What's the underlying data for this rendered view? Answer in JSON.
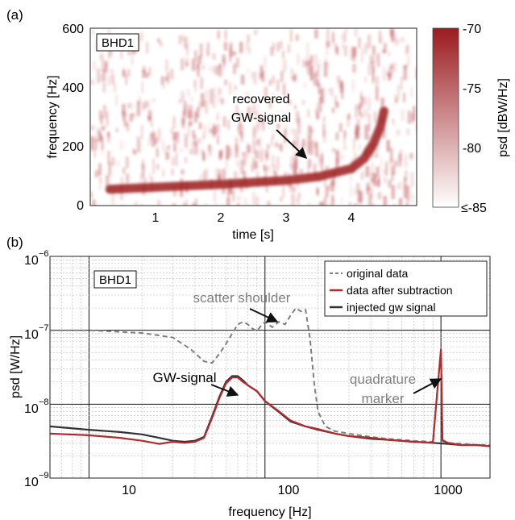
{
  "chart_data": [
    {
      "panel_label": "(a)",
      "type": "heatmap",
      "box_label": "BHD1",
      "xlabel": "time [s]",
      "ylabel": "frequency [Hz]",
      "xlim": [
        0,
        5
      ],
      "ylim": [
        0,
        600
      ],
      "xticks": [
        1,
        2,
        3,
        4
      ],
      "yticks": [
        0,
        200,
        400,
        600
      ],
      "colorbar": {
        "label": "psd [dBW/Hz]",
        "range": [
          -85,
          -70
        ],
        "ticks": [
          "-70",
          "-75",
          "-80",
          "≤-85"
        ],
        "color_low": "#ffffff",
        "color_high": "#9b1b1f"
      },
      "chirp_track": {
        "t": [
          0.3,
          1.0,
          2.0,
          3.0,
          3.5,
          4.0,
          4.2,
          4.35,
          4.45,
          4.5
        ],
        "f": [
          55,
          62,
          72,
          85,
          98,
          125,
          160,
          215,
          270,
          320
        ]
      },
      "annotation": {
        "lines": [
          "recovered",
          "GW-signal"
        ],
        "points_to": [
          3.45,
          95
        ]
      }
    },
    {
      "panel_label": "(b)",
      "type": "line",
      "box_label": "BHD1",
      "xlabel": "frequency [Hz]",
      "ylabel": "psd [W/Hz]",
      "xscale": "log",
      "yscale": "log",
      "xlim": [
        6,
        1900
      ],
      "ylim": [
        1e-09,
        1e-06
      ],
      "xticks": [
        10,
        100,
        1000
      ],
      "xticklabels": [
        "10",
        "100",
        "1000"
      ],
      "yticks": [
        1e-09,
        1e-08,
        1e-07,
        1e-06
      ],
      "yticklabels_mantissa": [
        "10",
        "10",
        "10",
        "10"
      ],
      "yticklabels_exponent": [
        "−9",
        "−8",
        "−7",
        "−6"
      ],
      "grid": true,
      "legend_position": "top-right",
      "series": [
        {
          "name": "original data",
          "color": "#808080",
          "style": "dashed",
          "x": [
            6,
            10,
            20,
            30,
            38,
            45,
            50,
            55,
            60,
            65,
            70,
            75,
            80,
            85,
            90,
            95,
            100,
            110,
            120,
            130,
            140,
            150,
            160,
            170,
            180,
            190,
            200,
            220,
            250,
            300,
            400,
            500,
            700,
            900,
            1000,
            1020,
            1100,
            1300,
            1600,
            1900
          ],
          "y": [
            1e-07,
            1e-07,
            9.2e-08,
            8e-08,
            5.5e-08,
            3.8e-08,
            3.6e-08,
            4.8e-08,
            6.5e-08,
            9e-08,
            1.2e-07,
            1.3e-07,
            1.2e-07,
            1.05e-07,
            9.8e-08,
            1.15e-07,
            1.3e-07,
            1.1e-07,
            1.3e-07,
            1.2e-07,
            1.6e-07,
            2e-07,
            1.8e-07,
            1.9e-07,
            8e-08,
            2e-08,
            8e-09,
            5e-09,
            4.3e-09,
            4e-09,
            3.6e-09,
            3.4e-09,
            3.2e-09,
            3.1e-09,
            5.5e-08,
            3.3e-09,
            3e-09,
            2.9e-09,
            2.8e-09,
            2.8e-09
          ]
        },
        {
          "name": "data after subtraction",
          "color": "#b22a2e",
          "style": "solid",
          "x": [
            6,
            10,
            15,
            20,
            25,
            30,
            35,
            40,
            45,
            50,
            55,
            60,
            65,
            70,
            75,
            80,
            90,
            100,
            120,
            140,
            170,
            200,
            250,
            300,
            400,
            500,
            700,
            900,
            1000,
            1020,
            1100,
            1300,
            1600,
            1900
          ],
          "y": [
            4e-09,
            3.8e-09,
            3.5e-09,
            3.2e-09,
            2.9e-09,
            3.1e-09,
            3e-09,
            3.1e-09,
            3.5e-09,
            6.5e-09,
            1.2e-08,
            1.9e-08,
            2.3e-08,
            2.3e-08,
            2e-08,
            1.8e-08,
            1.5e-08,
            1.1e-08,
            8e-09,
            6e-09,
            5e-09,
            4.6e-09,
            4e-09,
            3.7e-09,
            3.5e-09,
            3.3e-09,
            3.1e-09,
            3e-09,
            5.5e-08,
            3.2e-09,
            3e-09,
            2.8e-09,
            2.8e-09,
            2.7e-09
          ]
        },
        {
          "name": "injected gw signal",
          "color": "#333333",
          "style": "solid",
          "x": [
            6,
            10,
            15,
            20,
            25,
            30,
            35,
            40,
            45,
            50,
            55,
            60,
            65,
            70,
            75,
            80,
            90,
            100,
            120,
            140,
            170,
            200,
            250,
            300,
            400,
            500,
            700,
            900,
            1100,
            1300,
            1600,
            1900
          ],
          "y": [
            5e-09,
            4.5e-09,
            4.2e-09,
            3.9e-09,
            3.5e-09,
            3.2e-09,
            3.1e-09,
            3.2e-09,
            3.6e-09,
            6.8e-09,
            1.25e-08,
            2e-08,
            2.4e-08,
            2.4e-08,
            2.1e-08,
            1.8e-08,
            1.5e-08,
            1.1e-08,
            7.8e-09,
            5.8e-09,
            5e-09,
            4.5e-09,
            4e-09,
            3.7e-09,
            3.4e-09,
            3.3e-09,
            3.1e-09,
            3e-09,
            2.9e-09,
            2.8e-09,
            2.8e-09,
            2.7e-09
          ]
        }
      ],
      "annotations": [
        {
          "text": "scatter shoulder",
          "color": "#808080",
          "points_to": [
            92,
            1.3e-07
          ]
        },
        {
          "text": "GW-signal",
          "color": "#111111",
          "points_to": [
            60,
            1.5e-08
          ]
        },
        {
          "lines": [
            "quadrature",
            "marker"
          ],
          "color": "#808080",
          "points_to": [
            990,
            2.3e-08
          ]
        }
      ]
    }
  ]
}
